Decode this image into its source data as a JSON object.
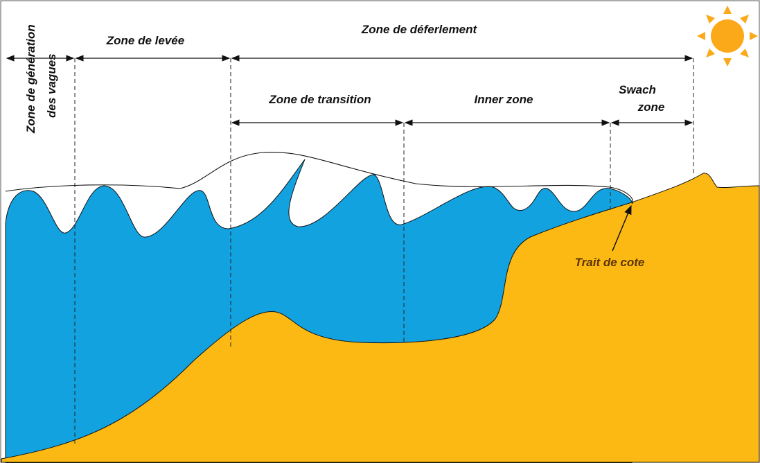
{
  "zones": {
    "generation": [
      "Zone de génération",
      "des vagues"
    ],
    "levee": "Zone de levée",
    "deferlement": "Zone de déferlement",
    "transition": "Zone de transition",
    "inner": "Inner zone",
    "swash": [
      "Swach",
      "zone"
    ]
  },
  "shoreline": "Trait de cote"
}
